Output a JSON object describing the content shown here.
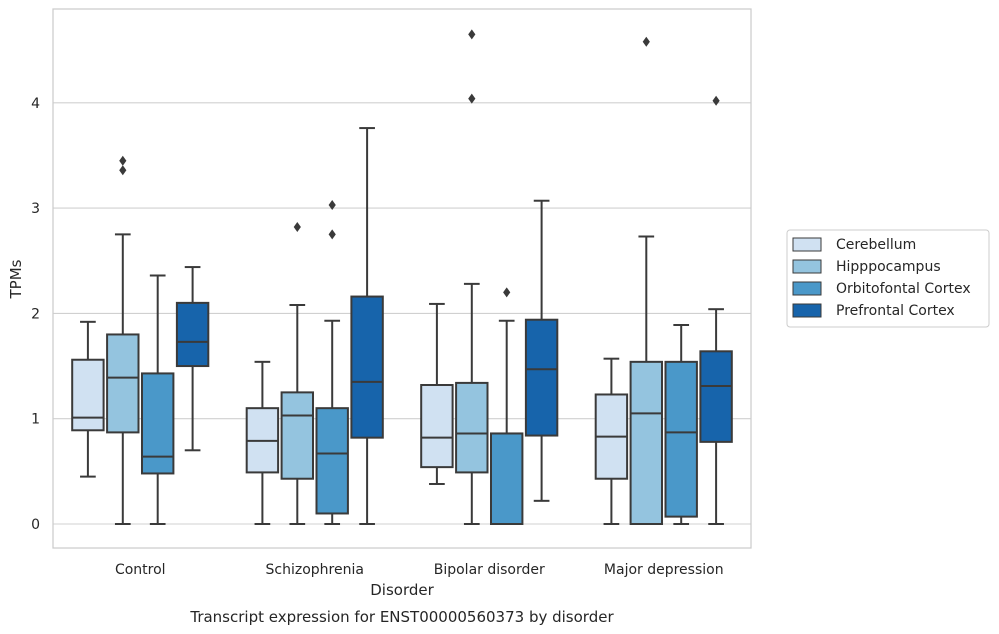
{
  "chart_data": {
    "type": "box",
    "title": "",
    "caption": "Transcript expression for ENST00000560373 by disorder",
    "xlabel": "Disorder",
    "ylabel": "TPMs",
    "ylim": [
      -0.22,
      4.9
    ],
    "yticks": [
      0,
      1,
      2,
      3,
      4
    ],
    "grid": true,
    "legend_position": "right",
    "categories": [
      "Control",
      "Schizophrenia",
      "Bipolar disorder",
      "Major depression"
    ],
    "series": [
      {
        "name": "Cerebellum",
        "color": "#d0e1f2",
        "boxes": [
          {
            "whisker_low": 0.45,
            "q1": 0.89,
            "median": 1.01,
            "q3": 1.56,
            "whisker_high": 1.92,
            "outliers": []
          },
          {
            "whisker_low": 0.0,
            "q1": 0.49,
            "median": 0.79,
            "q3": 1.1,
            "whisker_high": 1.54,
            "outliers": []
          },
          {
            "whisker_low": 0.38,
            "q1": 0.54,
            "median": 0.82,
            "q3": 1.32,
            "whisker_high": 2.09,
            "outliers": []
          },
          {
            "whisker_low": 0.0,
            "q1": 0.43,
            "median": 0.83,
            "q3": 1.23,
            "whisker_high": 1.57,
            "outliers": []
          }
        ]
      },
      {
        "name": "Hipppocampus",
        "color": "#94c4df",
        "boxes": [
          {
            "whisker_low": 0.0,
            "q1": 0.87,
            "median": 1.39,
            "q3": 1.8,
            "whisker_high": 2.75,
            "outliers": [
              3.36,
              3.45
            ]
          },
          {
            "whisker_low": 0.0,
            "q1": 0.43,
            "median": 1.03,
            "q3": 1.25,
            "whisker_high": 2.08,
            "outliers": [
              2.82
            ]
          },
          {
            "whisker_low": 0.0,
            "q1": 0.49,
            "median": 0.86,
            "q3": 1.34,
            "whisker_high": 2.28,
            "outliers": [
              4.04,
              4.65
            ]
          },
          {
            "whisker_low": 0.0,
            "q1": 0.0,
            "median": 1.05,
            "q3": 1.54,
            "whisker_high": 2.73,
            "outliers": [
              4.58
            ]
          }
        ]
      },
      {
        "name": "Orbitofontal Cortex",
        "color": "#4a98c9",
        "boxes": [
          {
            "whisker_low": 0.0,
            "q1": 0.48,
            "median": 0.64,
            "q3": 1.43,
            "whisker_high": 2.36,
            "outliers": []
          },
          {
            "whisker_low": 0.0,
            "q1": 0.1,
            "median": 0.67,
            "q3": 1.1,
            "whisker_high": 1.93,
            "outliers": [
              2.75,
              3.03
            ]
          },
          {
            "whisker_low": 0.0,
            "q1": 0.0,
            "median": 0.86,
            "q3": 0.86,
            "whisker_high": 1.93,
            "outliers": [
              2.2
            ]
          },
          {
            "whisker_low": 0.0,
            "q1": 0.07,
            "median": 0.87,
            "q3": 1.54,
            "whisker_high": 1.89,
            "outliers": []
          }
        ]
      },
      {
        "name": "Prefrontal Cortex",
        "color": "#1764ab",
        "boxes": [
          {
            "whisker_low": 0.7,
            "q1": 1.5,
            "median": 1.73,
            "q3": 2.1,
            "whisker_high": 2.44,
            "outliers": []
          },
          {
            "whisker_low": 0.0,
            "q1": 0.82,
            "median": 1.35,
            "q3": 2.16,
            "whisker_high": 3.76,
            "outliers": []
          },
          {
            "whisker_low": 0.22,
            "q1": 0.84,
            "median": 1.47,
            "q3": 1.94,
            "whisker_high": 3.07,
            "outliers": []
          },
          {
            "whisker_low": 0.0,
            "q1": 0.78,
            "median": 1.31,
            "q3": 1.64,
            "whisker_high": 2.04,
            "outliers": [
              4.02
            ]
          }
        ]
      }
    ]
  }
}
